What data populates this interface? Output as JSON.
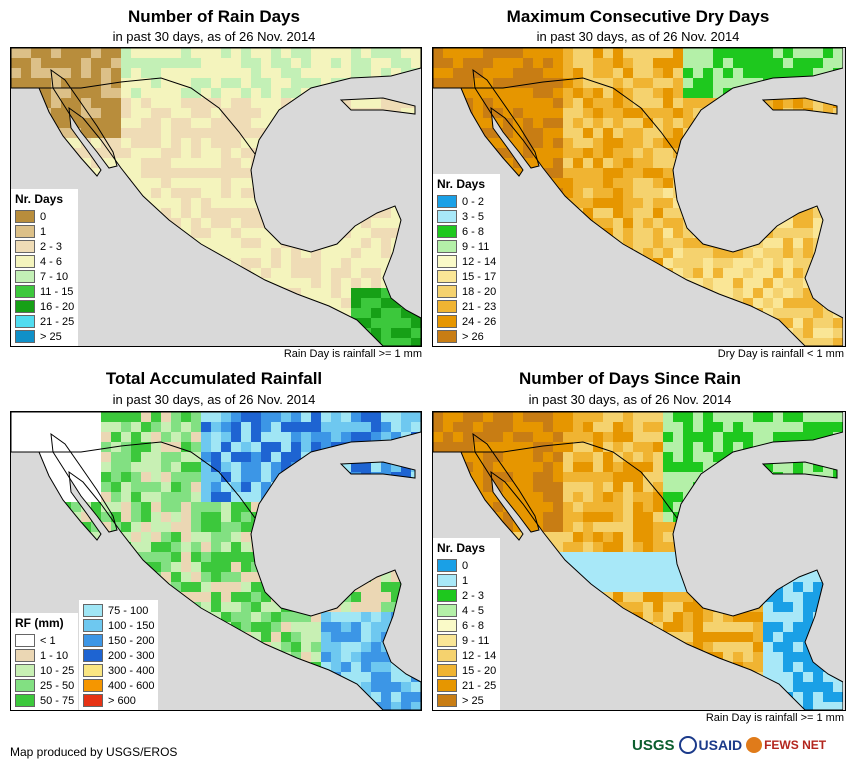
{
  "panels": [
    {
      "title": "Number of Rain Days",
      "subtitle": "in past 30 days, as of 26 Nov. 2014",
      "note": "Rain Day is rainfall >= 1 mm",
      "legend_title": "Nr. Days",
      "legend": [
        {
          "label": "0",
          "color": "#b88d3c"
        },
        {
          "label": "1",
          "color": "#dcc088"
        },
        {
          "label": "2 - 3",
          "color": "#efdcb6"
        },
        {
          "label": "4 - 6",
          "color": "#f4f4bd"
        },
        {
          "label": "7 - 10",
          "color": "#c3f0b6"
        },
        {
          "label": "11 - 15",
          "color": "#3cc83c"
        },
        {
          "label": "16 - 20",
          "color": "#16a016"
        },
        {
          "label": "21 - 25",
          "color": "#50dcf0"
        },
        {
          "label": "> 25",
          "color": "#1090c8"
        }
      ]
    },
    {
      "title": "Maximum Consecutive Dry Days",
      "subtitle": "in past 30 days, as of 26 Nov. 2014",
      "note": "Dry Day is rainfall < 1 mm",
      "legend_title": "Nr. Days",
      "legend": [
        {
          "label": "0 - 2",
          "color": "#1aa0e6"
        },
        {
          "label": "3 - 5",
          "color": "#a8e8f8"
        },
        {
          "label": "6 - 8",
          "color": "#1ec81e"
        },
        {
          "label": "9 - 11",
          "color": "#b4f0a8"
        },
        {
          "label": "12 - 14",
          "color": "#fafac8"
        },
        {
          "label": "15 - 17",
          "color": "#fae696"
        },
        {
          "label": "18 - 20",
          "color": "#f5d26e"
        },
        {
          "label": "21 - 23",
          "color": "#f0b432"
        },
        {
          "label": "24 - 26",
          "color": "#e69600"
        },
        {
          "label": "> 26",
          "color": "#c87d14"
        }
      ]
    },
    {
      "title": "Total Accumulated Rainfall",
      "subtitle": "in past 30 days, as of 26 Nov. 2014",
      "note": "",
      "legend_title": "RF (mm)",
      "legend": [
        {
          "label": "< 1",
          "color": "#ffffff"
        },
        {
          "label": "1 - 10",
          "color": "#ebd7b4"
        },
        {
          "label": "10 - 25",
          "color": "#c8f0b4"
        },
        {
          "label": "25 - 50",
          "color": "#82e082"
        },
        {
          "label": "50 - 75",
          "color": "#3cc83c"
        }
      ],
      "legend2": [
        {
          "label": "75 - 100",
          "color": "#a0e6f5"
        },
        {
          "label": "100 - 150",
          "color": "#6ec8f0"
        },
        {
          "label": "150 - 200",
          "color": "#3c96e6"
        },
        {
          "label": "200 - 300",
          "color": "#1e64d2"
        },
        {
          "label": "300 - 400",
          "color": "#fae682"
        },
        {
          "label": "400 - 600",
          "color": "#f59600"
        },
        {
          "label": "> 600",
          "color": "#e63214"
        }
      ]
    },
    {
      "title": "Number of Days Since Rain",
      "subtitle": "in past 30 days, as of 26 Nov. 2014",
      "note": "Rain Day is rainfall >= 1 mm",
      "legend_title": "Nr. Days",
      "legend": [
        {
          "label": "0",
          "color": "#1aa0e6"
        },
        {
          "label": "1",
          "color": "#a8e8f8"
        },
        {
          "label": "2 - 3",
          "color": "#1ec81e"
        },
        {
          "label": "4 - 5",
          "color": "#b4f0a8"
        },
        {
          "label": "6 - 8",
          "color": "#fafac8"
        },
        {
          "label": "9 - 11",
          "color": "#fae696"
        },
        {
          "label": "12 - 14",
          "color": "#f5d26e"
        },
        {
          "label": "15 - 20",
          "color": "#f0b432"
        },
        {
          "label": "21 - 25",
          "color": "#e69600"
        },
        {
          "label": "> 25",
          "color": "#c87d14"
        }
      ]
    }
  ],
  "credit": "Map produced by USGS/EROS",
  "logos": {
    "usgs": "USGS",
    "usaid": "USAID",
    "fews": "FEWS NET"
  },
  "colors": {
    "ocean": "#d9d9d9"
  }
}
